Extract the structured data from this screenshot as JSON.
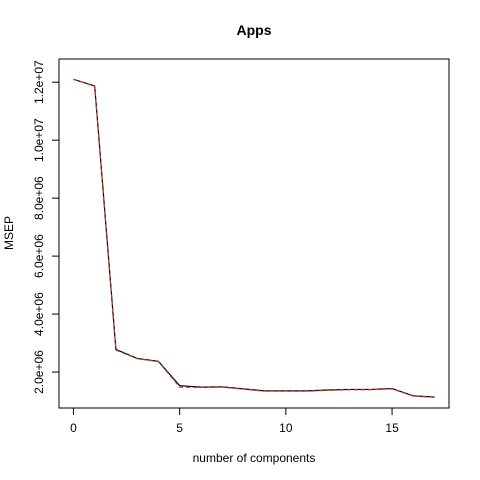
{
  "chart_data": {
    "type": "line",
    "title": "Apps",
    "xlabel": "number of components",
    "ylabel": "MSEP",
    "xlim": [
      -0.68,
      17.68
    ],
    "ylim": [
      760000,
      12800000
    ],
    "xticks": [
      0,
      5,
      10,
      15
    ],
    "xtick_labels": [
      "0",
      "5",
      "10",
      "15"
    ],
    "yticks": [
      2000000,
      4000000,
      6000000,
      8000000,
      10000000,
      12000000
    ],
    "ytick_labels": [
      "2.0e+06",
      "4.0e+06",
      "6.0e+06",
      "8.0e+06",
      "1.0e+07",
      "1.2e+07"
    ],
    "grid": false,
    "legend": "none",
    "series": [
      {
        "color": "#000000",
        "dash": "solid",
        "x": [
          0,
          1,
          2,
          3,
          4,
          5,
          6,
          7,
          8,
          9,
          10,
          11,
          12,
          13,
          14,
          15,
          16,
          17
        ],
        "y": [
          12100000,
          11870000,
          2780000,
          2470000,
          2370000,
          1530000,
          1480000,
          1490000,
          1420000,
          1350000,
          1350000,
          1350000,
          1380000,
          1400000,
          1400000,
          1430000,
          1180000,
          1140000
        ]
      },
      {
        "color": "#c0392b",
        "dash": "dashed",
        "x": [
          0,
          1,
          2,
          3,
          4,
          5,
          6,
          7,
          8,
          9,
          10,
          11,
          12,
          13,
          14,
          15,
          16,
          17
        ],
        "y": [
          12100000,
          11860000,
          2760000,
          2460000,
          2360000,
          1480000,
          1470000,
          1480000,
          1410000,
          1340000,
          1340000,
          1340000,
          1370000,
          1390000,
          1390000,
          1420000,
          1170000,
          1130000
        ]
      }
    ]
  }
}
